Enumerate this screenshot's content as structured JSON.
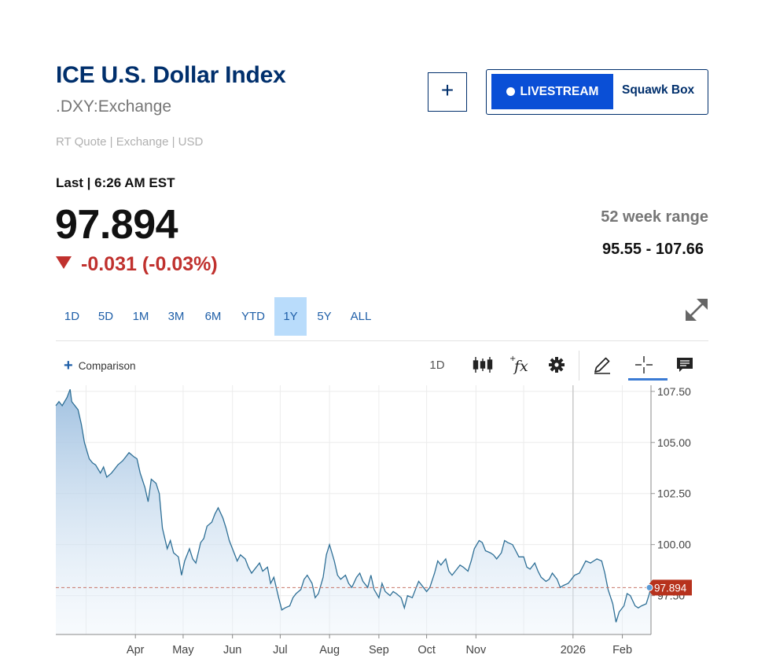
{
  "header": {
    "title": "ICE U.S. Dollar Index",
    "symbol": ".DXY:Exchange",
    "quote_meta": "RT Quote | Exchange | USD",
    "add_label": "+"
  },
  "livestream": {
    "button_label": "LIVESTREAM",
    "show_label": "Squawk Box"
  },
  "quote": {
    "last_label": "Last | 6:26 AM EST",
    "last_price": "97.894",
    "change": "-0.031 (-0.03%)",
    "direction": "down",
    "range_label": "52 week range",
    "range_value": "95.55 - 107.66"
  },
  "periods": [
    {
      "label": "1D",
      "active": false
    },
    {
      "label": "5D",
      "active": false
    },
    {
      "label": "1M",
      "active": false
    },
    {
      "label": "3M",
      "active": false
    },
    {
      "label": "6M",
      "active": false
    },
    {
      "label": "YTD",
      "active": false
    },
    {
      "label": "1Y",
      "active": true
    },
    {
      "label": "5Y",
      "active": false
    },
    {
      "label": "ALL",
      "active": false
    }
  ],
  "toolbar": {
    "comparison_label": "Comparison",
    "interval_label": "1D",
    "icons": [
      "candlestick-icon",
      "function-icon",
      "gear-icon",
      "pencil-icon",
      "crosshair-icon",
      "comment-icon"
    ]
  },
  "colors": {
    "brand": "#002f6c",
    "accent": "#0a4fd6",
    "negative": "#c0312e",
    "line": "#2e6f96",
    "price_tag": "#b7321d"
  },
  "chart_data": {
    "type": "area",
    "x_axis_labels": [
      "Apr",
      "May",
      "Jun",
      "Jul",
      "Aug",
      "Sep",
      "Oct",
      "Nov",
      "2026",
      "Feb"
    ],
    "y_axis_labels": [
      "107.50",
      "105.00",
      "102.50",
      "100.00",
      "97.50"
    ],
    "y_ticks": [
      107.5,
      105.0,
      102.5,
      100.0,
      97.5
    ],
    "ylim": [
      95.6,
      107.8
    ],
    "current_value": 97.894,
    "current_label": "97.894",
    "grid": true,
    "points": [
      [
        "2025-02-10",
        106.8
      ],
      [
        "2025-02-12",
        107.0
      ],
      [
        "2025-02-14",
        106.8
      ],
      [
        "2025-02-17",
        107.2
      ],
      [
        "2025-02-19",
        107.6
      ],
      [
        "2025-02-20",
        107.0
      ],
      [
        "2025-02-24",
        106.6
      ],
      [
        "2025-02-26",
        105.9
      ],
      [
        "2025-02-28",
        105.0
      ],
      [
        "2025-03-03",
        104.2
      ],
      [
        "2025-03-05",
        104.0
      ],
      [
        "2025-03-07",
        103.9
      ],
      [
        "2025-03-10",
        103.5
      ],
      [
        "2025-03-12",
        103.8
      ],
      [
        "2025-03-14",
        103.3
      ],
      [
        "2025-03-17",
        103.5
      ],
      [
        "2025-03-19",
        103.7
      ],
      [
        "2025-03-21",
        103.9
      ],
      [
        "2025-03-24",
        104.1
      ],
      [
        "2025-03-26",
        104.3
      ],
      [
        "2025-03-28",
        104.5
      ],
      [
        "2025-03-31",
        104.3
      ],
      [
        "2025-04-02",
        104.2
      ],
      [
        "2025-04-04",
        103.5
      ],
      [
        "2025-04-07",
        102.8
      ],
      [
        "2025-04-09",
        102.1
      ],
      [
        "2025-04-11",
        103.2
      ],
      [
        "2025-04-14",
        103.0
      ],
      [
        "2025-04-16",
        102.5
      ],
      [
        "2025-04-18",
        100.8
      ],
      [
        "2025-04-21",
        99.8
      ],
      [
        "2025-04-23",
        100.2
      ],
      [
        "2025-04-25",
        99.6
      ],
      [
        "2025-04-28",
        99.4
      ],
      [
        "2025-04-30",
        98.5
      ],
      [
        "2025-05-02",
        99.2
      ],
      [
        "2025-05-05",
        99.8
      ],
      [
        "2025-05-07",
        99.3
      ],
      [
        "2025-05-09",
        99.1
      ],
      [
        "2025-05-12",
        100.1
      ],
      [
        "2025-05-14",
        100.3
      ],
      [
        "2025-05-16",
        100.9
      ],
      [
        "2025-05-19",
        101.1
      ],
      [
        "2025-05-21",
        101.5
      ],
      [
        "2025-05-23",
        101.8
      ],
      [
        "2025-05-26",
        101.3
      ],
      [
        "2025-05-28",
        100.8
      ],
      [
        "2025-05-30",
        100.2
      ],
      [
        "2025-06-02",
        99.6
      ],
      [
        "2025-06-04",
        99.2
      ],
      [
        "2025-06-06",
        99.5
      ],
      [
        "2025-06-09",
        99.3
      ],
      [
        "2025-06-11",
        98.9
      ],
      [
        "2025-06-13",
        98.6
      ],
      [
        "2025-06-16",
        98.9
      ],
      [
        "2025-06-18",
        99.1
      ],
      [
        "2025-06-20",
        98.7
      ],
      [
        "2025-06-23",
        98.9
      ],
      [
        "2025-06-25",
        98.1
      ],
      [
        "2025-06-27",
        98.4
      ],
      [
        "2025-06-30",
        97.4
      ],
      [
        "2025-07-02",
        96.8
      ],
      [
        "2025-07-04",
        96.9
      ],
      [
        "2025-07-07",
        97.0
      ],
      [
        "2025-07-09",
        97.4
      ],
      [
        "2025-07-11",
        97.6
      ],
      [
        "2025-07-14",
        97.8
      ],
      [
        "2025-07-16",
        98.3
      ],
      [
        "2025-07-18",
        98.5
      ],
      [
        "2025-07-21",
        98.1
      ],
      [
        "2025-07-23",
        97.4
      ],
      [
        "2025-07-25",
        97.6
      ],
      [
        "2025-07-28",
        98.4
      ],
      [
        "2025-07-30",
        99.5
      ],
      [
        "2025-08-01",
        100.0
      ],
      [
        "2025-08-04",
        99.2
      ],
      [
        "2025-08-06",
        98.5
      ],
      [
        "2025-08-08",
        98.3
      ],
      [
        "2025-08-11",
        98.5
      ],
      [
        "2025-08-13",
        98.1
      ],
      [
        "2025-08-15",
        97.9
      ],
      [
        "2025-08-18",
        98.4
      ],
      [
        "2025-08-20",
        98.6
      ],
      [
        "2025-08-22",
        98.2
      ],
      [
        "2025-08-25",
        97.9
      ],
      [
        "2025-08-27",
        98.5
      ],
      [
        "2025-08-29",
        97.8
      ],
      [
        "2025-09-01",
        97.4
      ],
      [
        "2025-09-03",
        98.1
      ],
      [
        "2025-09-05",
        97.7
      ],
      [
        "2025-09-08",
        97.5
      ],
      [
        "2025-09-10",
        97.7
      ],
      [
        "2025-09-12",
        97.6
      ],
      [
        "2025-09-15",
        97.4
      ],
      [
        "2025-09-17",
        96.9
      ],
      [
        "2025-09-19",
        97.5
      ],
      [
        "2025-09-22",
        97.4
      ],
      [
        "2025-09-24",
        97.8
      ],
      [
        "2025-09-26",
        98.2
      ],
      [
        "2025-09-29",
        97.9
      ],
      [
        "2025-10-01",
        97.7
      ],
      [
        "2025-10-03",
        97.9
      ],
      [
        "2025-10-06",
        98.6
      ],
      [
        "2025-10-08",
        99.2
      ],
      [
        "2025-10-10",
        99.0
      ],
      [
        "2025-10-13",
        99.3
      ],
      [
        "2025-10-15",
        98.7
      ],
      [
        "2025-10-17",
        98.5
      ],
      [
        "2025-10-20",
        98.8
      ],
      [
        "2025-10-22",
        99.0
      ],
      [
        "2025-10-24",
        98.9
      ],
      [
        "2025-10-27",
        98.7
      ],
      [
        "2025-10-29",
        99.2
      ],
      [
        "2025-10-31",
        99.8
      ],
      [
        "2025-11-03",
        100.2
      ],
      [
        "2025-11-05",
        100.1
      ],
      [
        "2025-11-07",
        99.7
      ],
      [
        "2025-11-10",
        99.6
      ],
      [
        "2025-11-12",
        99.5
      ],
      [
        "2025-11-14",
        99.3
      ],
      [
        "2025-11-17",
        99.6
      ],
      [
        "2025-11-19",
        100.2
      ],
      [
        "2025-11-21",
        100.1
      ],
      [
        "2025-11-24",
        100.0
      ],
      [
        "2025-11-26",
        99.7
      ],
      [
        "2025-11-28",
        99.4
      ],
      [
        "2025-12-01",
        99.4
      ],
      [
        "2025-12-03",
        98.9
      ],
      [
        "2025-12-05",
        98.8
      ],
      [
        "2025-12-08",
        99.1
      ],
      [
        "2025-12-10",
        98.7
      ],
      [
        "2025-12-12",
        98.4
      ],
      [
        "2025-12-15",
        98.2
      ],
      [
        "2025-12-17",
        98.3
      ],
      [
        "2025-12-19",
        98.6
      ],
      [
        "2025-12-22",
        98.3
      ],
      [
        "2025-12-24",
        97.9
      ],
      [
        "2025-12-26",
        98.0
      ],
      [
        "2025-12-29",
        98.1
      ],
      [
        "2025-12-31",
        98.3
      ],
      [
        "2026-01-02",
        98.5
      ],
      [
        "2026-01-05",
        98.6
      ],
      [
        "2026-01-07",
        98.9
      ],
      [
        "2026-01-09",
        99.2
      ],
      [
        "2026-01-12",
        99.1
      ],
      [
        "2026-01-14",
        99.2
      ],
      [
        "2026-01-16",
        99.3
      ],
      [
        "2026-01-19",
        99.2
      ],
      [
        "2026-01-21",
        98.6
      ],
      [
        "2026-01-23",
        97.8
      ],
      [
        "2026-01-26",
        97.1
      ],
      [
        "2026-01-28",
        96.2
      ],
      [
        "2026-01-30",
        96.7
      ],
      [
        "2026-02-02",
        97.0
      ],
      [
        "2026-02-04",
        97.6
      ],
      [
        "2026-02-06",
        97.5
      ],
      [
        "2026-02-09",
        97.0
      ],
      [
        "2026-02-11",
        96.9
      ],
      [
        "2026-02-13",
        97.0
      ],
      [
        "2026-02-16",
        97.1
      ],
      [
        "2026-02-18",
        97.6
      ],
      [
        "2026-02-19",
        97.9
      ]
    ]
  }
}
